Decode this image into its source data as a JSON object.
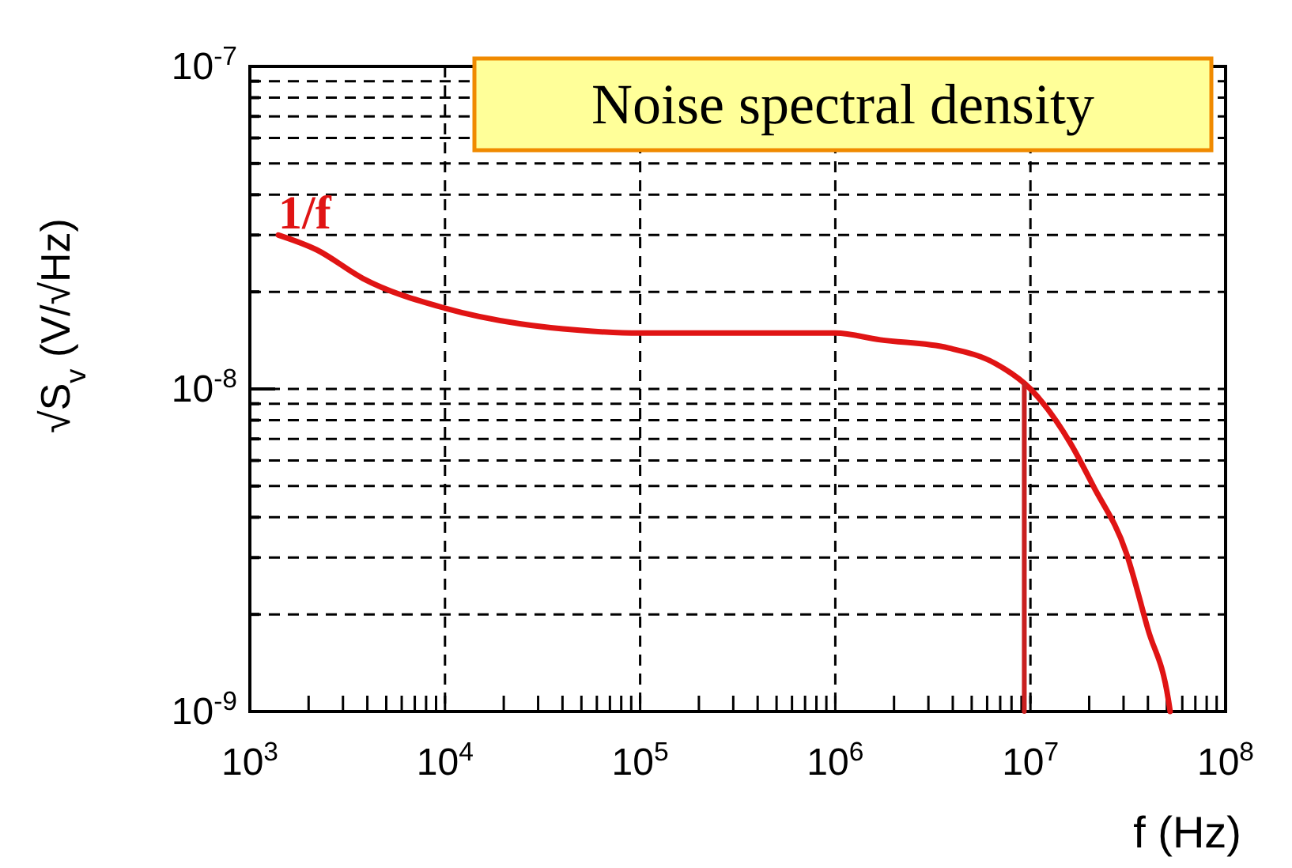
{
  "chart_data": {
    "type": "line",
    "title": "Noise spectral density",
    "xlabel": "f (Hz)",
    "ylabel": "√S$_{v}$ (V/√Hz)",
    "log": "xy",
    "grid": true,
    "marker": "none",
    "line_style": "solid",
    "xlim": [
      1000,
      100000000
    ],
    "ylim": [
      1e-09,
      1e-07
    ],
    "xticks": [
      {
        "value": 1000,
        "label": "10$^{3}$"
      },
      {
        "value": 2000,
        "label": null
      },
      {
        "value": 3000,
        "label": null
      },
      {
        "value": 4000,
        "label": null
      },
      {
        "value": 5000,
        "label": null
      },
      {
        "value": 6000,
        "label": null
      },
      {
        "value": 7000,
        "label": null
      },
      {
        "value": 8000,
        "label": null
      },
      {
        "value": 9000,
        "label": null
      },
      {
        "value": 10000,
        "label": "10$^{4}$"
      },
      {
        "value": 20000,
        "label": null
      },
      {
        "value": 30000,
        "label": null
      },
      {
        "value": 40000,
        "label": null
      },
      {
        "value": 50000,
        "label": null
      },
      {
        "value": 60000,
        "label": null
      },
      {
        "value": 70000,
        "label": null
      },
      {
        "value": 80000,
        "label": null
      },
      {
        "value": 90000,
        "label": null
      },
      {
        "value": 100000,
        "label": "10$^{5}$"
      },
      {
        "value": 200000,
        "label": null
      },
      {
        "value": 300000,
        "label": null
      },
      {
        "value": 400000,
        "label": null
      },
      {
        "value": 500000,
        "label": null
      },
      {
        "value": 600000,
        "label": null
      },
      {
        "value": 700000,
        "label": null
      },
      {
        "value": 800000,
        "label": null
      },
      {
        "value": 900000,
        "label": null
      },
      {
        "value": 1000000,
        "label": "10$^{6}$"
      },
      {
        "value": 2000000,
        "label": null
      },
      {
        "value": 3000000,
        "label": null
      },
      {
        "value": 4000000,
        "label": null
      },
      {
        "value": 5000000,
        "label": null
      },
      {
        "value": 6000000,
        "label": null
      },
      {
        "value": 7000000,
        "label": null
      },
      {
        "value": 8000000,
        "label": null
      },
      {
        "value": 9000000,
        "label": null
      },
      {
        "value": 10000000,
        "label": "10$^{7}$"
      },
      {
        "value": 20000000,
        "label": null
      },
      {
        "value": 30000000,
        "label": null
      },
      {
        "value": 40000000,
        "label": null
      },
      {
        "value": 50000000,
        "label": null
      },
      {
        "value": 60000000,
        "label": null
      },
      {
        "value": 70000000,
        "label": null
      },
      {
        "value": 80000000,
        "label": null
      },
      {
        "value": 90000000,
        "label": null
      },
      {
        "value": 100000000,
        "label": "10$^{8}$"
      }
    ],
    "yticks": [
      {
        "value": 1e-09,
        "label": "10$^{-9}$"
      },
      {
        "value": 2e-09,
        "label": null
      },
      {
        "value": 3e-09,
        "label": null
      },
      {
        "value": 4e-09,
        "label": null
      },
      {
        "value": 5e-09,
        "label": null
      },
      {
        "value": 6e-09,
        "label": null
      },
      {
        "value": 7e-09,
        "label": null
      },
      {
        "value": 8e-09,
        "label": null
      },
      {
        "value": 9e-09,
        "label": null
      },
      {
        "value": 1e-08,
        "label": "10$^{-8}$"
      },
      {
        "value": 2e-08,
        "label": null
      },
      {
        "value": 3e-08,
        "label": null
      },
      {
        "value": 4e-08,
        "label": null
      },
      {
        "value": 5e-08,
        "label": null
      },
      {
        "value": 6e-08,
        "label": null
      },
      {
        "value": 7e-08,
        "label": null
      },
      {
        "value": 8e-08,
        "label": null
      },
      {
        "value": 9e-08,
        "label": null
      },
      {
        "value": 1e-07,
        "label": "10$^{-7}$"
      }
    ],
    "series": [
      {
        "color": "#e01414",
        "x": [
          1400,
          2200,
          3800,
          10000,
          24500,
          49000,
          100000,
          1000000,
          1700000,
          3800000,
          6600000,
          10000000,
          16000000,
          21000000,
          31000000,
          40000000,
          51000000,
          52000000
        ],
        "values": [
          3e-08,
          2.7e-08,
          2.2e-08,
          1.78e-08,
          1.59e-08,
          1.52e-08,
          1.49e-08,
          1.49e-08,
          1.42e-08,
          1.34e-08,
          1.2e-08,
          1e-08,
          6.8e-09,
          5e-09,
          3.1e-09,
          1.8e-09,
          1.08e-09,
          1e-09
        ]
      },
      {
        "color": "#c82020",
        "x": [
          9300000,
          9300000
        ],
        "values": [
          1e-09,
          1.03e-08
        ]
      }
    ],
    "annotations": [
      "1/f"
    ]
  }
}
